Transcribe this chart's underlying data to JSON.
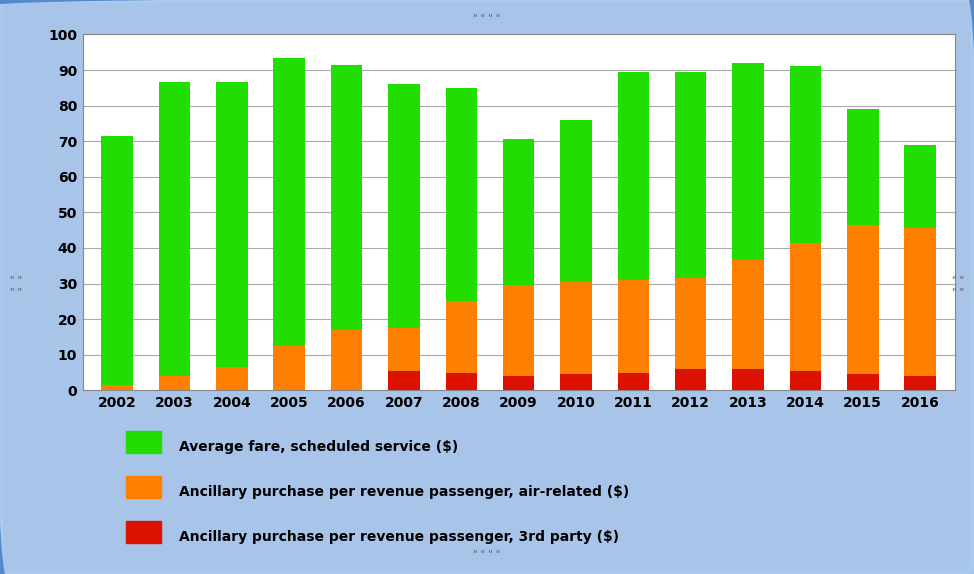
{
  "years": [
    2002,
    2003,
    2004,
    2005,
    2006,
    2007,
    2008,
    2009,
    2010,
    2011,
    2012,
    2013,
    2014,
    2015,
    2016
  ],
  "avg_fare": [
    71.5,
    86.5,
    86.5,
    93.5,
    91.5,
    86.0,
    85.0,
    70.5,
    76.0,
    89.5,
    89.5,
    92.0,
    91.0,
    79.0,
    69.0
  ],
  "ancillary_air": [
    1.5,
    4.0,
    6.5,
    12.5,
    17.0,
    17.5,
    25.0,
    29.5,
    30.5,
    31.0,
    31.5,
    36.5,
    41.5,
    46.5,
    45.5
  ],
  "ancillary_3rd": [
    0,
    0,
    0,
    0,
    0,
    5.5,
    5.0,
    4.0,
    4.5,
    5.0,
    6.0,
    6.0,
    5.5,
    4.5,
    4.0
  ],
  "color_fare": "#22dd00",
  "color_air": "#ff8000",
  "color_3rd": "#dd1100",
  "ylim": [
    0,
    100
  ],
  "yticks": [
    0,
    10,
    20,
    30,
    40,
    50,
    60,
    70,
    80,
    90,
    100
  ],
  "legend_fare": "Average fare, scheduled service ($)",
  "legend_air": "Ancillary purchase per revenue passenger, air-related ($)",
  "legend_3rd": "Ancillary purchase per revenue passenger, 3rd party ($)",
  "background_outer": "#a8c4e8",
  "background_plot": "#ffffff",
  "grid_color": "#aaaaaa",
  "bar_width": 0.55,
  "title_decoration": "\" \" \" \""
}
